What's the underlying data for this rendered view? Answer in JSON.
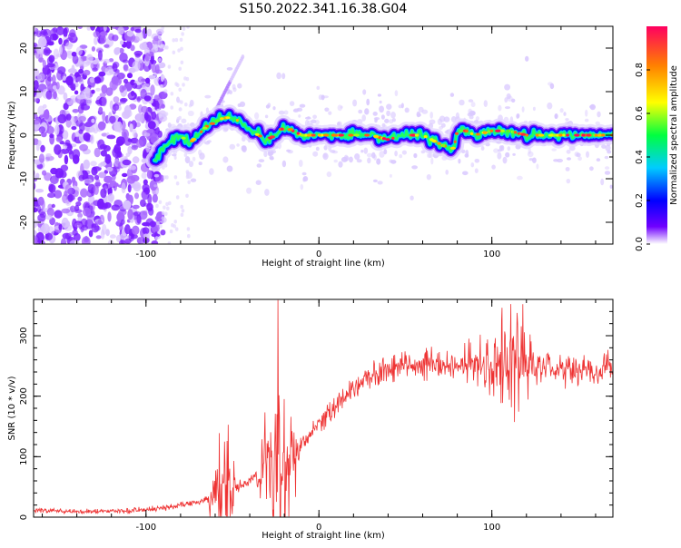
{
  "title": "S150.2022.341.16.38.G04",
  "chart_data": [
    {
      "type": "heatmap",
      "title": "S150.2022.341.16.38.G04",
      "xlabel": "Height of straight line (km)",
      "ylabel": "Frequency (Hz)",
      "xlim": [
        -165,
        170
      ],
      "ylim": [
        -25,
        25
      ],
      "x_ticks": [
        -100,
        0,
        100
      ],
      "x_tick_labels": [
        "-100",
        "0",
        "100"
      ],
      "y_ticks": [
        -20,
        -10,
        0,
        10,
        20
      ],
      "y_tick_labels": [
        "-20",
        "-10",
        "0",
        "10",
        "20"
      ],
      "colorbar": {
        "label": "Normalized spectral amplitude",
        "range": [
          0,
          1
        ],
        "ticks": [
          0.0,
          0.2,
          0.4,
          0.6,
          0.8
        ],
        "tick_labels": [
          "0.0",
          "0.2",
          "0.4",
          "0.6",
          "0.8"
        ],
        "colormap": [
          "#ffffff",
          "#7000ff",
          "#0000ff",
          "#00ccff",
          "#00ff40",
          "#ffff00",
          "#ff8000",
          "#ff0060"
        ]
      },
      "noise_region_x": [
        -165,
        -95
      ],
      "ridge": {
        "x": [
          -95,
          -90,
          -85,
          -80,
          -75,
          -70,
          -65,
          -60,
          -55,
          -50,
          -45,
          -40,
          -35,
          -30,
          -25,
          -20,
          -15,
          -10,
          -5,
          0,
          10,
          20,
          30,
          40,
          50,
          60,
          65,
          70,
          75,
          78,
          80,
          85,
          90,
          100,
          110,
          120,
          130,
          140,
          150,
          160,
          170
        ],
        "y": [
          -6,
          -3,
          -1,
          0,
          -2,
          0,
          2,
          3,
          4,
          4,
          3,
          1,
          0,
          -1,
          0,
          2,
          1,
          0,
          0,
          0,
          0,
          0,
          0,
          -1,
          0,
          0,
          -1,
          -2,
          -3,
          -3,
          1,
          1,
          0,
          1,
          1,
          0,
          0,
          0,
          0,
          0,
          0
        ],
        "units": "Hz"
      },
      "trace_peak_value": 0.95
    },
    {
      "type": "line",
      "xlabel": "Height of straight line (km)",
      "ylabel": "SNR (10 * v/v)",
      "xlim": [
        -165,
        170
      ],
      "ylim": [
        0,
        360
      ],
      "x_ticks": [
        -100,
        0,
        100
      ],
      "x_tick_labels": [
        "-100",
        "0",
        "100"
      ],
      "y_ticks": [
        0,
        100,
        200,
        300
      ],
      "y_tick_labels": [
        "0",
        "100",
        "200",
        "300"
      ],
      "series": [
        {
          "color": "#ee3333",
          "x": [
            -165,
            -150,
            -130,
            -110,
            -100,
            -90,
            -80,
            -70,
            -60,
            -55,
            -50,
            -40,
            -30,
            -20,
            -10,
            0,
            10,
            20,
            30,
            40,
            50,
            60,
            70,
            80,
            90,
            100,
            110,
            120,
            130,
            140,
            150,
            160,
            170
          ],
          "values": [
            12,
            10,
            9,
            10,
            12,
            15,
            20,
            25,
            35,
            55,
            45,
            60,
            75,
            90,
            120,
            155,
            185,
            215,
            235,
            245,
            250,
            250,
            252,
            255,
            255,
            250,
            250,
            248,
            245,
            245,
            240,
            245,
            245
          ]
        }
      ]
    }
  ]
}
